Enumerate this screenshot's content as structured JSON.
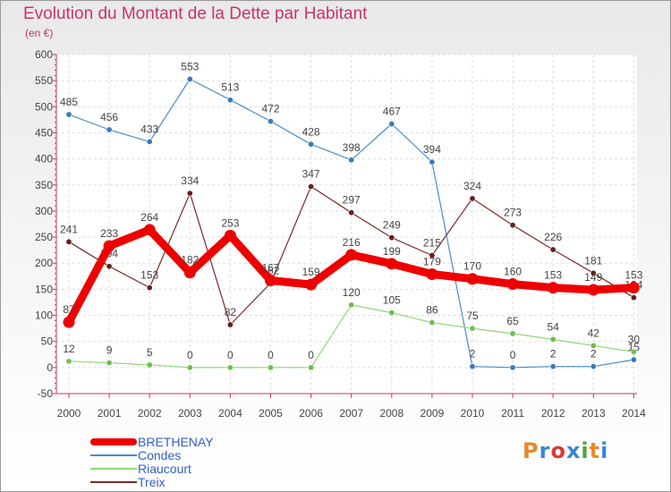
{
  "title": "Evolution du Montant de la Dette par Habitant",
  "subtitle": "(en €)",
  "brand": {
    "text": "Proxiti",
    "colors": [
      "#e8892b",
      "#3a86d0",
      "#d83a3a",
      "#3a86d0",
      "#4aa840",
      "#e8892b",
      "#3a86d0"
    ]
  },
  "colors": {
    "title": "#c8336e",
    "axis": "#c8336e",
    "grid": "#dddddd",
    "label": "#444444"
  },
  "chart_data": {
    "type": "line",
    "x": [
      2000,
      2001,
      2002,
      2003,
      2004,
      2005,
      2006,
      2007,
      2008,
      2009,
      2010,
      2011,
      2012,
      2013,
      2014
    ],
    "ylim": [
      -50,
      600
    ],
    "yticks": [
      -50,
      0,
      50,
      100,
      150,
      200,
      250,
      300,
      350,
      400,
      450,
      500,
      550,
      600
    ],
    "grid": true,
    "legend_position": "bottom-left",
    "series": [
      {
        "name": "Condes",
        "color": "#4a8cc8",
        "marker": "#3a7ab8",
        "width": 1.2,
        "markerSize": 3.2,
        "values": [
          485,
          456,
          433,
          553,
          513,
          472,
          428,
          398,
          467,
          394,
          2,
          0,
          2,
          2,
          15
        ],
        "labels": [
          "485",
          "456",
          "433",
          "553",
          "513",
          "472",
          "428",
          "398",
          "467",
          "394",
          "2",
          "0",
          "2",
          "2",
          "15"
        ]
      },
      {
        "name": "Riaucourt",
        "color": "#90d878",
        "marker": "#6ac04a",
        "width": 1.2,
        "markerSize": 3.2,
        "values": [
          12,
          9,
          5,
          0,
          0,
          0,
          0,
          120,
          105,
          86,
          75,
          65,
          54,
          42,
          30
        ],
        "labels": [
          "12",
          "9",
          "5",
          "0",
          "0",
          "0",
          "0",
          "120",
          "105",
          "86",
          "75",
          "65",
          "54",
          "42",
          "30"
        ]
      },
      {
        "name": "Treix",
        "color": "#7a2a2a",
        "marker": "#6a1e1e",
        "width": 1.2,
        "markerSize": 3.2,
        "values": [
          241,
          194,
          153,
          334,
          82,
          162,
          347,
          297,
          249,
          215,
          324,
          273,
          226,
          181,
          134
        ],
        "labels": [
          "241",
          "194",
          "153",
          "334",
          "82",
          "162",
          "347",
          "297",
          "249",
          "215",
          "324",
          "273",
          "226",
          "181",
          "134"
        ]
      },
      {
        "name": "BRETHENAY",
        "color": "#ee0000",
        "marker": "#ee0000",
        "width": 9,
        "markerSize": 6.5,
        "values": [
          87,
          233,
          264,
          182,
          253,
          167,
          159,
          216,
          199,
          179,
          170,
          160,
          153,
          149,
          153
        ],
        "labels": [
          "87",
          "233",
          "264",
          "182",
          "253",
          "167",
          "159",
          "216",
          "199",
          "179",
          "170",
          "160",
          "153",
          "149",
          "153"
        ]
      }
    ],
    "legend_order": [
      "BRETHENAY",
      "Condes",
      "Riaucourt",
      "Treix"
    ]
  }
}
